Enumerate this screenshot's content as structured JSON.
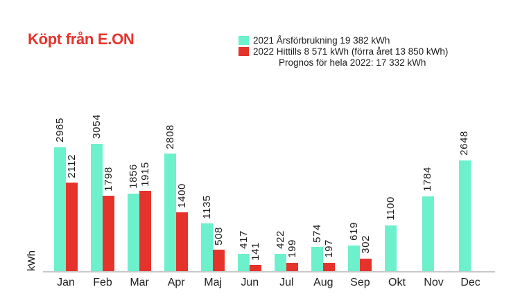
{
  "header": {
    "title": "Köpt från E.ON",
    "title_color": "#e5332c"
  },
  "legend": {
    "items": [
      {
        "swatch_color": "#6df0cc",
        "label": "2021 Årsförbrukning 19 382 kWh",
        "indent": false
      },
      {
        "swatch_color": "#e5332c",
        "label": "2022 Hittills 8 571 kWh (förra året 13 850 kWh)",
        "indent": false
      },
      {
        "swatch_color": null,
        "label": "Prognos för hela 2022: 17 332 kWh",
        "indent": true
      }
    ]
  },
  "chart_data": {
    "type": "bar",
    "title": "Köpt från E.ON",
    "xlabel": "",
    "ylabel": "kWh",
    "ylim": [
      0,
      3100
    ],
    "grid": false,
    "legend_position": "top-right",
    "categories": [
      "Jan",
      "Feb",
      "Mar",
      "Apr",
      "Maj",
      "Jun",
      "Jul",
      "Aug",
      "Sep",
      "Okt",
      "Nov",
      "Dec"
    ],
    "series": [
      {
        "name": "2021",
        "color": "#6df0cc",
        "values": [
          2965,
          3054,
          1856,
          2808,
          1135,
          417,
          422,
          574,
          619,
          1100,
          1784,
          2648
        ]
      },
      {
        "name": "2022",
        "color": "#e5332c",
        "values": [
          2112,
          1798,
          1915,
          1400,
          508,
          141,
          199,
          197,
          302,
          null,
          null,
          null
        ]
      }
    ],
    "annotations": {
      "total_2021": "19 382 kWh",
      "total_2022_so_far": "8 571 kWh",
      "total_2021_same_period": "13 850 kWh",
      "forecast_2022": "17 332 kWh"
    }
  }
}
